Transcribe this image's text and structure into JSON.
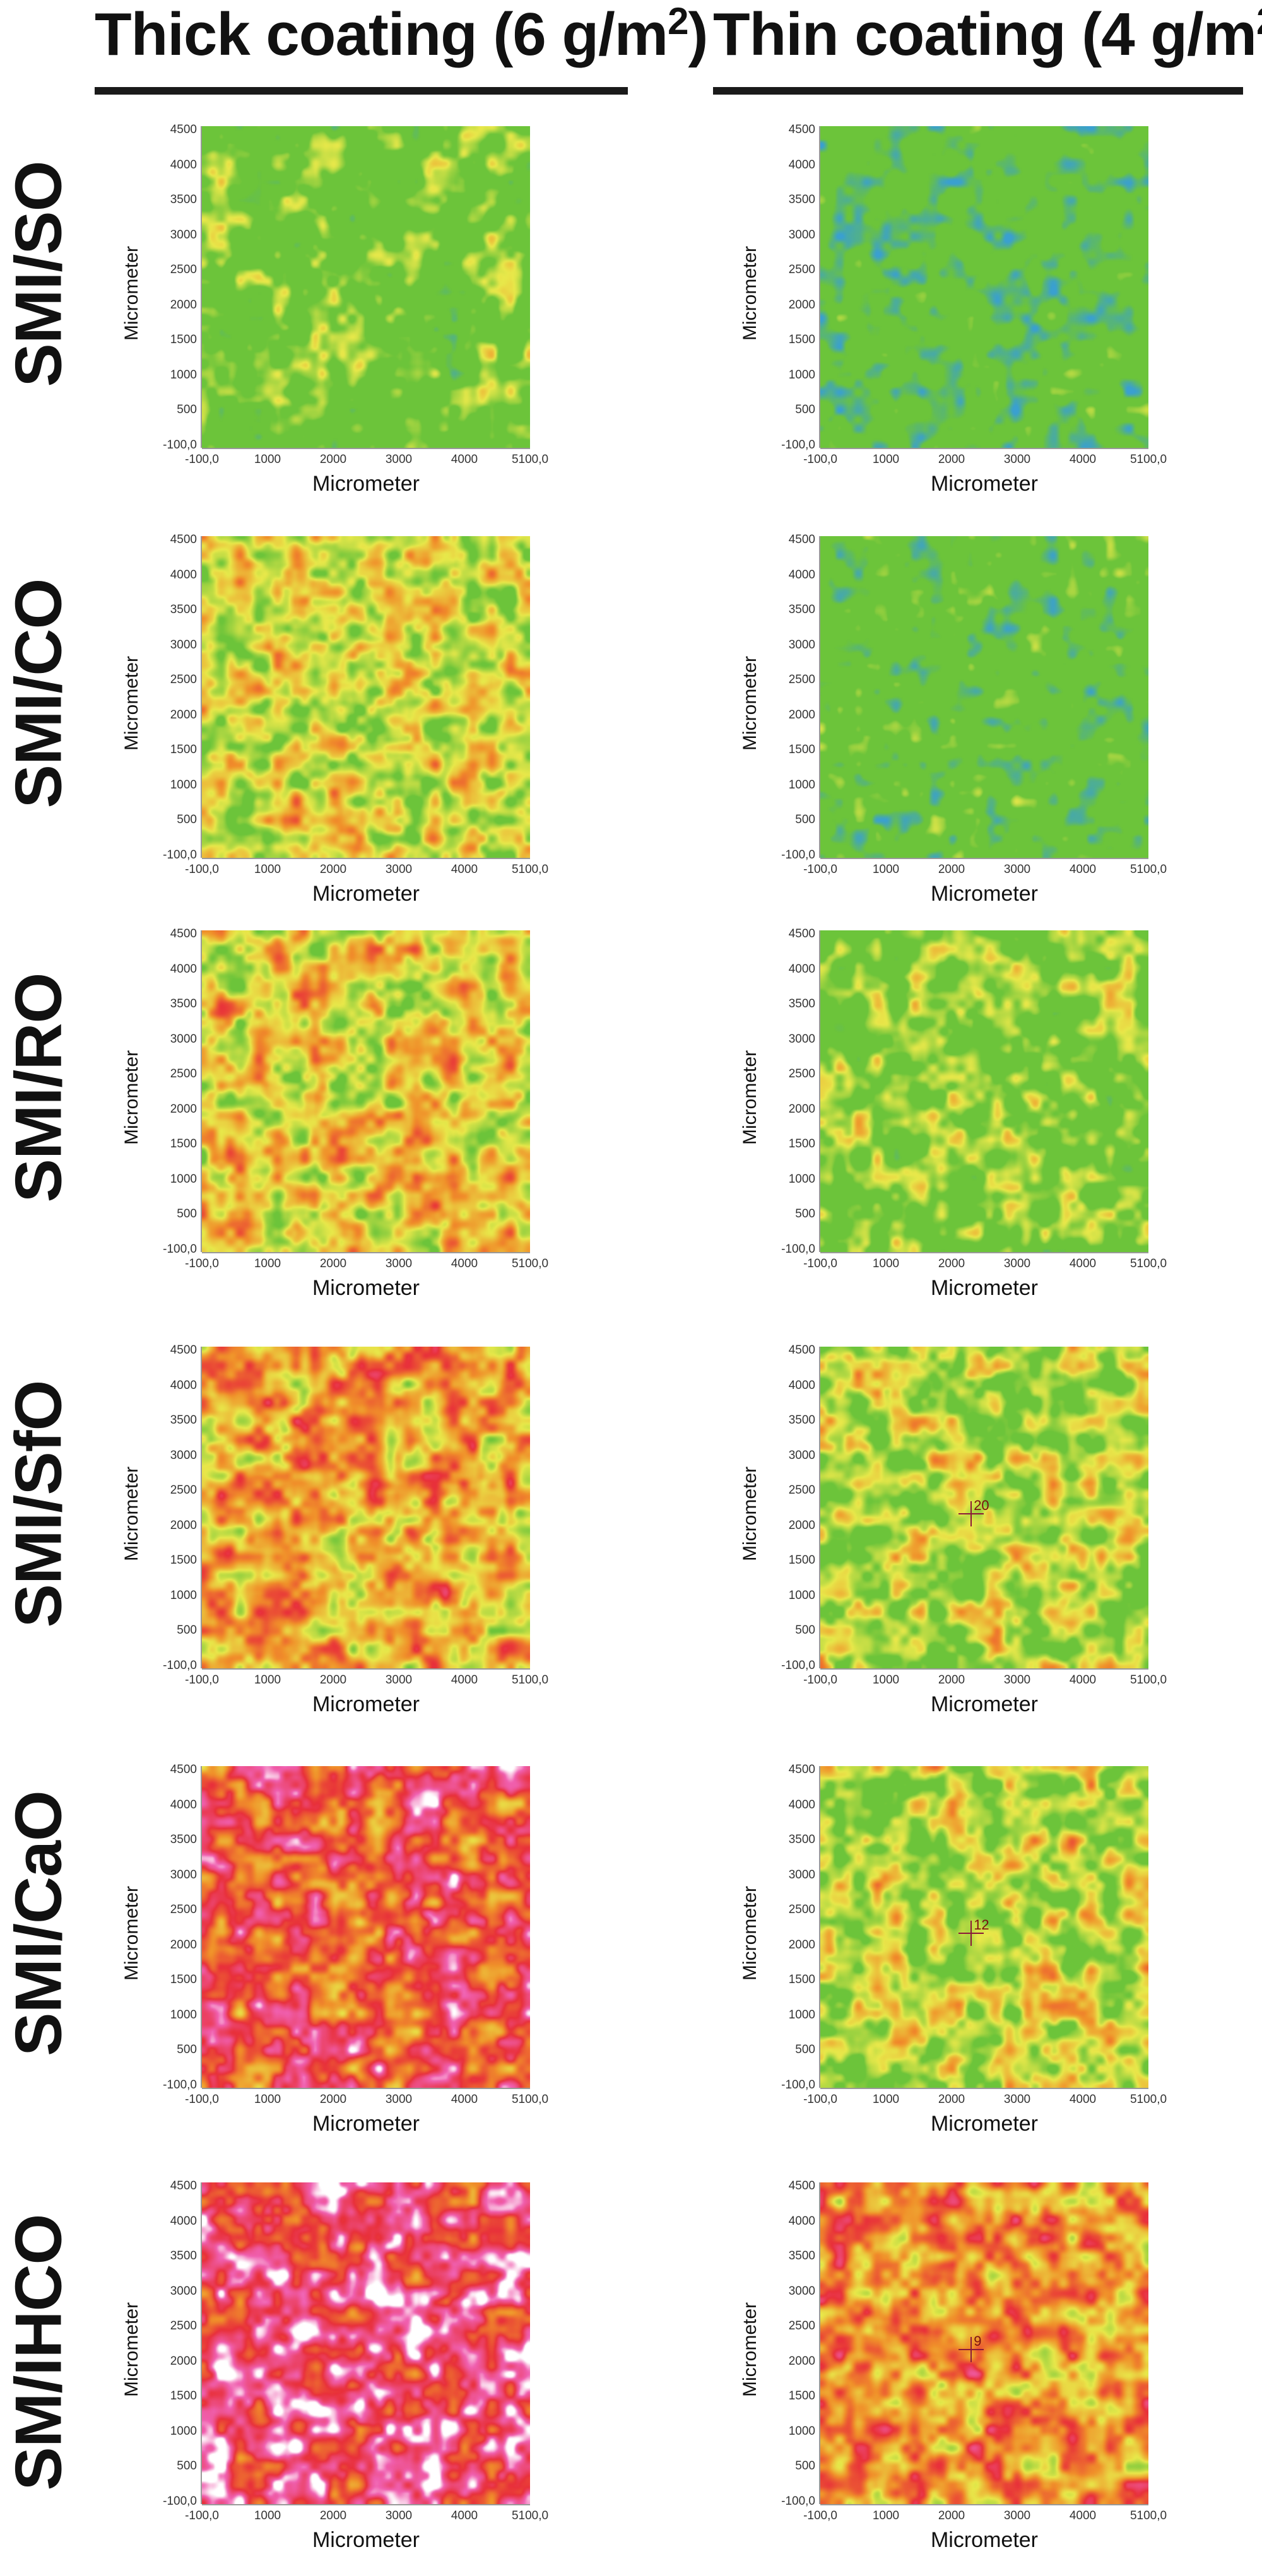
{
  "columns": [
    {
      "title": "Thick coating (6 g/m",
      "sup": "2",
      "close": ")"
    },
    {
      "title": "Thin coating (4 g/m",
      "sup": "2",
      "close": ")"
    }
  ],
  "rows": [
    "SMI/SO",
    "SMI/CO",
    "SMI/RO",
    "SMI/SfO",
    "SMI/CaO",
    "SM/IHCO"
  ],
  "axis": {
    "xlabel": "Micrometer",
    "ylabel": "Micrometer",
    "x_ticks": [
      "-100,0",
      "1000",
      "2000",
      "3000",
      "4000",
      "5100,0"
    ],
    "y_ticks": [
      "4500",
      "4000",
      "3500",
      "3000",
      "2500",
      "2000",
      "1500",
      "1000",
      "500",
      "-100,0"
    ]
  },
  "colors": {
    "blue": "#3aa0d0",
    "green": "#6cc43a",
    "yellow": "#e8e84a",
    "orange": "#f0902a",
    "red": "#e8303a",
    "magenta": "#f060b0",
    "white": "#ffffff"
  },
  "panels": [
    {
      "id": "thick-smi-so",
      "base": 0.35,
      "cursor": ""
    },
    {
      "id": "thin-smi-so",
      "base": 0.22,
      "cursor": ""
    },
    {
      "id": "thick-smi-co",
      "base": 0.5,
      "cursor": ""
    },
    {
      "id": "thin-smi-co",
      "base": 0.25,
      "cursor": ""
    },
    {
      "id": "thick-smi-ro",
      "base": 0.55,
      "cursor": ""
    },
    {
      "id": "thin-smi-ro",
      "base": 0.38,
      "cursor": ""
    },
    {
      "id": "thick-smi-sfo",
      "base": 0.62,
      "cursor": ""
    },
    {
      "id": "thin-smi-sfo",
      "base": 0.46,
      "cursor": "20"
    },
    {
      "id": "thick-smi-cao",
      "base": 0.78,
      "cursor": ""
    },
    {
      "id": "thin-smi-cao",
      "base": 0.48,
      "cursor": "12"
    },
    {
      "id": "thick-smi-ihco",
      "base": 0.86,
      "cursor": ""
    },
    {
      "id": "thin-smi-ihco",
      "base": 0.66,
      "cursor": "9"
    }
  ]
}
